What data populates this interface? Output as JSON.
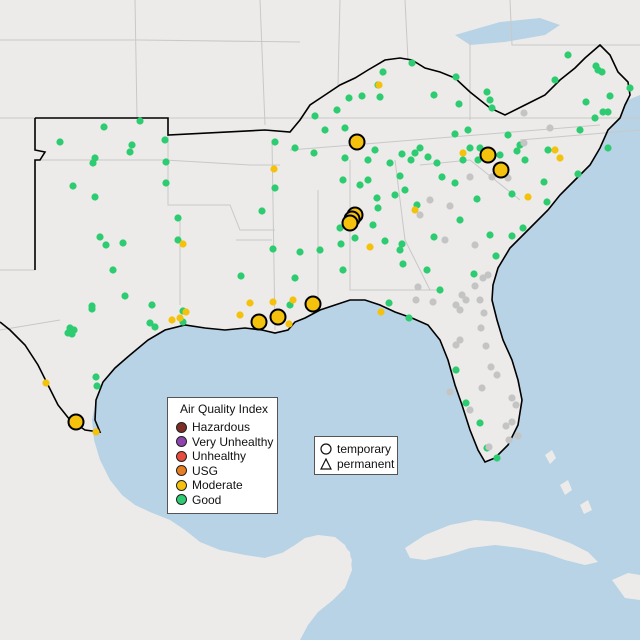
{
  "colors": {
    "water": "#b8d3e6",
    "land": "#ecebe9",
    "land_south": "#dcdad5",
    "state_line": "#c8c8c8",
    "region_border": "#000000",
    "good": "#2ecc71",
    "moderate": "#f4c20d",
    "usg": "#e67e22",
    "unhealthy": "#e74c3c",
    "very_unhealthy": "#8e44ad",
    "hazardous": "#7b2d26",
    "no_data": "#c4c4c4"
  },
  "aqi_legend": {
    "title": "Air Quality Index",
    "items": [
      {
        "label": "Hazardous",
        "color": "#7b2d26"
      },
      {
        "label": "Very Unhealthy",
        "color": "#8e44ad"
      },
      {
        "label": "Unhealthy",
        "color": "#e74c3c"
      },
      {
        "label": "USG",
        "color": "#e67e22"
      },
      {
        "label": "Moderate",
        "color": "#f4c20d"
      },
      {
        "label": "Good",
        "color": "#2ecc71"
      }
    ]
  },
  "monitor_type_legend": {
    "items": [
      {
        "label": "temporary",
        "symbol": "circle"
      },
      {
        "label": "permanent",
        "symbol": "triangle"
      }
    ]
  }
}
